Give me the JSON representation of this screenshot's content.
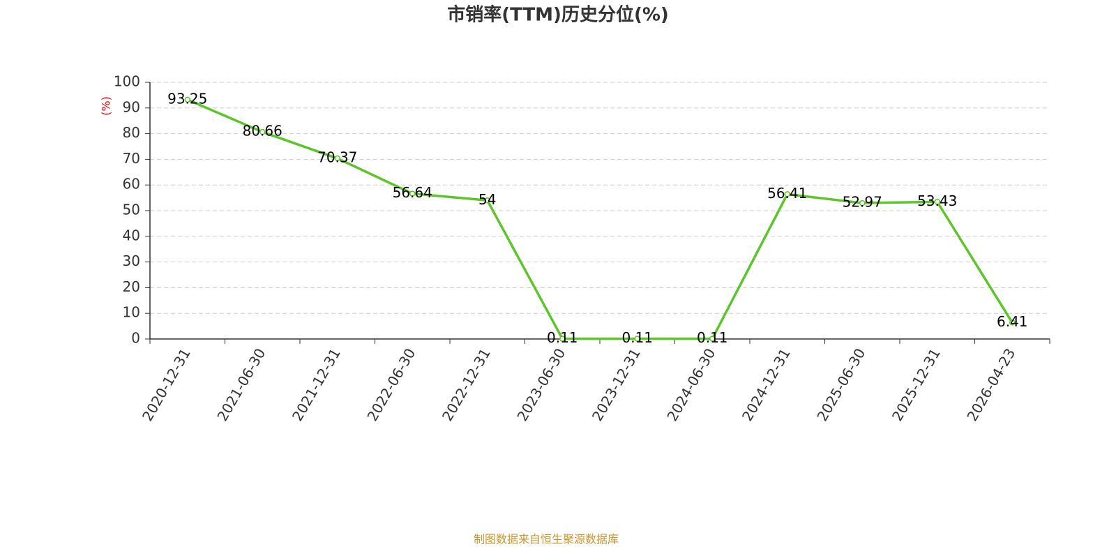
{
  "chart_data": {
    "type": "line",
    "title": "市销率(TTM)历史分位(%)",
    "y_label": "(%)",
    "categories": [
      "2020-12-31",
      "2021-06-30",
      "2021-12-31",
      "2022-06-30",
      "2022-12-31",
      "2023-06-30",
      "2023-12-31",
      "2024-06-30",
      "2024-12-31",
      "2025-06-30",
      "2025-12-31",
      "2026-04-23"
    ],
    "values": [
      93.25,
      80.66,
      70.37,
      56.64,
      54,
      0.11,
      0.11,
      0.11,
      56.41,
      52.97,
      53.43,
      6.41
    ],
    "color": "#5cc52a",
    "ylim": [
      0,
      100
    ],
    "yticks": [
      0,
      10,
      20,
      30,
      40,
      50,
      60,
      70,
      80,
      90,
      100
    ],
    "grid": true,
    "source": "制图数据来自恒生聚源数据库"
  }
}
